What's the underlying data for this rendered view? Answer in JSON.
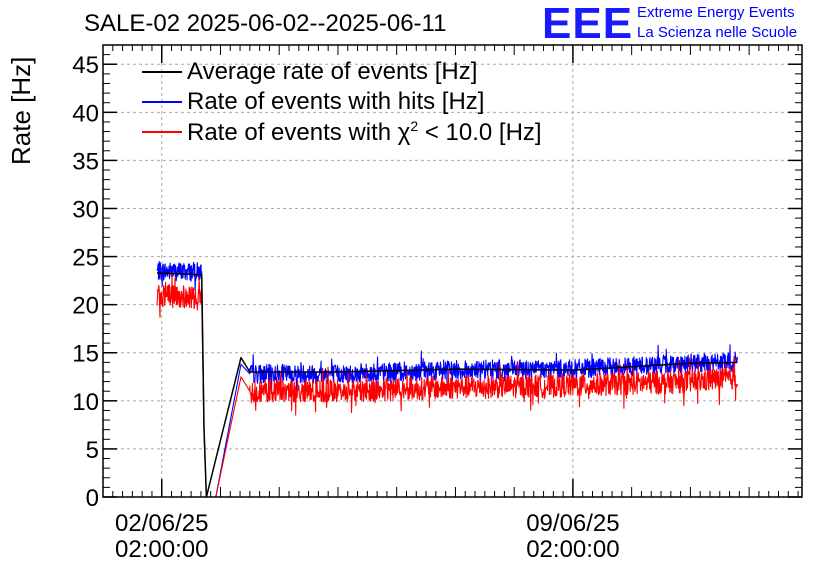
{
  "header": {
    "title": "SALE-02 2025-06-02--2025-06-11",
    "logo_mark": "EEE",
    "logo_line1": "Extreme Energy Events",
    "logo_line2": "La Scienza nelle Scuole"
  },
  "chart_data": {
    "type": "line",
    "ylabel": "Rate [Hz]",
    "ylim": [
      0,
      47
    ],
    "y_ticks": [
      "0",
      "5",
      "10",
      "15",
      "20",
      "25",
      "30",
      "35",
      "40",
      "45"
    ],
    "xlim_days": [
      -1.0,
      10.9
    ],
    "x_ticks": [
      {
        "line1": "02/06/25",
        "line2": "02:00:00",
        "day": 0
      },
      {
        "line1": "09/06/25",
        "line2": "02:00:00",
        "day": 7
      }
    ],
    "grid": true,
    "legend_position": "top-left",
    "series": [
      {
        "name": "Average rate of events [Hz]",
        "color": "#000000",
        "points": [
          [
            -0.08,
            23.3
          ],
          [
            0.68,
            23.1
          ],
          [
            0.72,
            7.2
          ],
          [
            0.76,
            0.0
          ],
          [
            1.35,
            14.5
          ],
          [
            1.5,
            13.0
          ],
          [
            3.0,
            13.0
          ],
          [
            5.0,
            13.3
          ],
          [
            7.0,
            13.2
          ],
          [
            9.0,
            13.9
          ],
          [
            9.8,
            14.0
          ]
        ]
      },
      {
        "name": "Rate of events with hits [Hz]",
        "color": "#0000ff",
        "points": [
          [
            -0.08,
            23.5
          ],
          [
            0.68,
            23.4
          ],
          [
            0.72,
            7.2
          ],
          [
            0.76,
            0.0
          ],
          [
            0.92,
            0.0
          ],
          [
            1.35,
            13.8
          ],
          [
            1.5,
            12.8
          ],
          [
            3.0,
            12.8
          ],
          [
            5.0,
            13.2
          ],
          [
            7.0,
            13.3
          ],
          [
            9.0,
            13.9
          ],
          [
            9.8,
            14.0
          ]
        ]
      },
      {
        "name": "Rate of events with χ² < 10.0 [Hz]",
        "legend_prefix": "Rate of events with ",
        "legend_chi": "χ",
        "legend_sup": "2",
        "legend_suffix": " < 10.0 [Hz]",
        "color": "#ff0000",
        "points": [
          [
            -0.08,
            21.0
          ],
          [
            0.68,
            20.6
          ],
          [
            0.72,
            6.6
          ],
          [
            0.76,
            0.0
          ],
          [
            0.92,
            0.0
          ],
          [
            1.35,
            12.5
          ],
          [
            1.5,
            11.0
          ],
          [
            3.0,
            11.0
          ],
          [
            5.0,
            11.4
          ],
          [
            7.0,
            11.6
          ],
          [
            9.0,
            12.0
          ],
          [
            9.8,
            12.4
          ]
        ]
      }
    ]
  }
}
